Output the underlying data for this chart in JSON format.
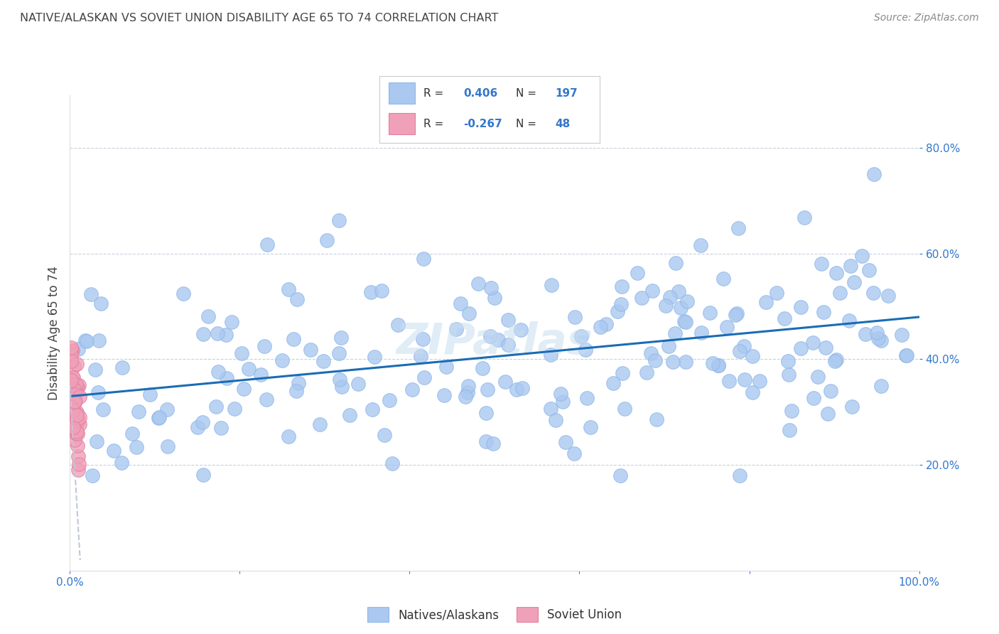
{
  "title": "NATIVE/ALASKAN VS SOVIET UNION DISABILITY AGE 65 TO 74 CORRELATION CHART",
  "source": "Source: ZipAtlas.com",
  "ylabel": "Disability Age 65 to 74",
  "xlim": [
    0.0,
    1.0
  ],
  "ylim": [
    0.0,
    0.9
  ],
  "blue_color": "#aac8f0",
  "blue_edge_color": "#90b8e8",
  "pink_color": "#f0a0b8",
  "pink_edge_color": "#e080a0",
  "line_color": "#1a6cb5",
  "dashed_line_color": "#c0c8d8",
  "background_color": "#ffffff",
  "grid_color": "#c8d0dc",
  "title_color": "#444444",
  "axis_label_color": "#3377cc",
  "legend_value_color": "#3377cc",
  "trend_y_start": 0.33,
  "trend_y_end": 0.48,
  "dashed_trend_x_start": 0.0,
  "dashed_trend_x_end": 0.012,
  "dashed_trend_y_start": 0.35,
  "dashed_trend_y_end": 0.02,
  "watermark": "ZIPatlas",
  "watermark_color": "#c8ddf0",
  "y_ticks": [
    0.2,
    0.4,
    0.6,
    0.8
  ],
  "y_tick_labels": [
    "20.0%",
    "40.0%",
    "60.0%",
    "80.0%"
  ],
  "x_ticks": [
    0.0,
    0.2,
    0.4,
    0.6,
    0.8,
    1.0
  ],
  "x_tick_labels": [
    "0.0%",
    "",
    "",
    "",
    "",
    "100.0%"
  ]
}
